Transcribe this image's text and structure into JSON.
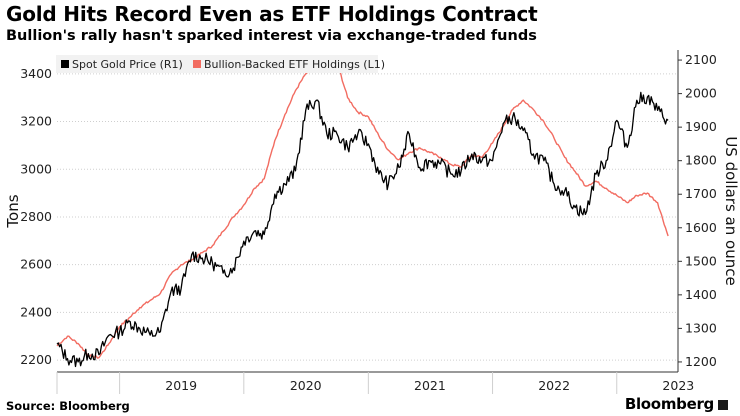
{
  "header": {
    "title": "Gold Hits Record Even as ETF Holdings Contract",
    "subtitle": "Bullion's rally hasn't sparked interest via exchange-traded funds"
  },
  "footer": {
    "source": "Source: Bloomberg",
    "brand": "Bloomberg"
  },
  "colors": {
    "gold_price": "#000000",
    "etf_holdings": "#f26c61",
    "grid": "#cfcfcf",
    "axis": "#333333"
  },
  "chart_data": {
    "type": "line",
    "xlabel": "",
    "x_ticks": [
      "2019",
      "2020",
      "2021",
      "2022",
      "2023"
    ],
    "x_range": [
      "2018-07-01",
      "2023-06-30"
    ],
    "ylabel_left": "Tons",
    "ylabel_right": "US dollars an ounce",
    "y_left": {
      "range": [
        2150,
        3500
      ],
      "ticks": [
        2200,
        2400,
        2600,
        2800,
        3000,
        3200,
        3400
      ]
    },
    "y_right": {
      "range": [
        1170,
        2130
      ],
      "ticks": [
        1200,
        1300,
        1400,
        1500,
        1600,
        1700,
        1800,
        1900,
        2000,
        2100
      ]
    },
    "grid": true,
    "legend_position": "top-left",
    "series": [
      {
        "name": "Spot Gold Price (R1)",
        "axis": "right",
        "x": [
          "2018-07-01",
          "2018-08-01",
          "2018-09-01",
          "2018-10-01",
          "2018-11-01",
          "2018-12-01",
          "2019-01-01",
          "2019-02-01",
          "2019-03-01",
          "2019-04-01",
          "2019-05-01",
          "2019-06-01",
          "2019-07-01",
          "2019-08-01",
          "2019-09-01",
          "2019-10-01",
          "2019-11-01",
          "2019-12-01",
          "2020-01-01",
          "2020-02-01",
          "2020-03-01",
          "2020-04-01",
          "2020-05-01",
          "2020-06-01",
          "2020-07-01",
          "2020-08-01",
          "2020-09-01",
          "2020-10-01",
          "2020-11-01",
          "2020-12-01",
          "2021-01-01",
          "2021-02-01",
          "2021-03-01",
          "2021-04-01",
          "2021-05-01",
          "2021-06-01",
          "2021-07-01",
          "2021-08-01",
          "2021-09-01",
          "2021-10-01",
          "2021-11-01",
          "2021-12-01",
          "2022-01-01",
          "2022-02-01",
          "2022-03-01",
          "2022-04-01",
          "2022-05-01",
          "2022-06-01",
          "2022-07-01",
          "2022-08-01",
          "2022-09-01",
          "2022-10-01",
          "2022-11-01",
          "2022-12-01",
          "2023-01-01",
          "2023-02-01",
          "2023-03-01",
          "2023-04-01",
          "2023-05-01",
          "2023-06-01"
        ],
        "values": [
          1253,
          1210,
          1200,
          1225,
          1222,
          1280,
          1290,
          1320,
          1300,
          1280,
          1290,
          1410,
          1420,
          1520,
          1510,
          1495,
          1465,
          1480,
          1560,
          1590,
          1580,
          1700,
          1730,
          1770,
          1950,
          1980,
          1880,
          1880,
          1840,
          1880,
          1850,
          1760,
          1730,
          1780,
          1880,
          1780,
          1800,
          1790,
          1760,
          1770,
          1820,
          1800,
          1800,
          1910,
          1930,
          1890,
          1820,
          1800,
          1730,
          1710,
          1660,
          1640,
          1760,
          1800,
          1920,
          1840,
          1980,
          1990,
          1950,
          1920
        ]
      },
      {
        "name": "Bullion-Backed ETF Holdings (L1)",
        "axis": "left",
        "x": [
          "2018-07-01",
          "2018-08-01",
          "2018-09-01",
          "2018-10-01",
          "2018-11-01",
          "2018-12-01",
          "2019-01-01",
          "2019-02-01",
          "2019-03-01",
          "2019-04-01",
          "2019-05-01",
          "2019-06-01",
          "2019-07-01",
          "2019-08-01",
          "2019-09-01",
          "2019-10-01",
          "2019-11-01",
          "2019-12-01",
          "2020-01-01",
          "2020-02-01",
          "2020-03-01",
          "2020-04-01",
          "2020-05-01",
          "2020-06-01",
          "2020-07-01",
          "2020-08-01",
          "2020-09-01",
          "2020-10-01",
          "2020-11-01",
          "2020-12-01",
          "2021-01-01",
          "2021-02-01",
          "2021-03-01",
          "2021-04-01",
          "2021-05-01",
          "2021-06-01",
          "2021-07-01",
          "2021-08-01",
          "2021-09-01",
          "2021-10-01",
          "2021-11-01",
          "2021-12-01",
          "2022-01-01",
          "2022-02-01",
          "2022-03-01",
          "2022-04-01",
          "2022-05-01",
          "2022-06-01",
          "2022-07-01",
          "2022-08-01",
          "2022-09-01",
          "2022-10-01",
          "2022-11-01",
          "2022-12-01",
          "2023-01-01",
          "2023-02-01",
          "2023-03-01",
          "2023-04-01",
          "2023-05-01",
          "2023-06-01"
        ],
        "values": [
          2260,
          2300,
          2270,
          2220,
          2210,
          2270,
          2340,
          2380,
          2420,
          2450,
          2480,
          2560,
          2600,
          2620,
          2650,
          2680,
          2740,
          2800,
          2850,
          2920,
          2960,
          3120,
          3230,
          3330,
          3400,
          3440,
          3460,
          3450,
          3300,
          3240,
          3220,
          3140,
          3080,
          3040,
          3070,
          3090,
          3070,
          3050,
          3020,
          3010,
          3060,
          3050,
          3110,
          3180,
          3250,
          3290,
          3250,
          3200,
          3130,
          3050,
          2990,
          2930,
          2950,
          2920,
          2890,
          2860,
          2890,
          2900,
          2860,
          2720
        ]
      }
    ]
  }
}
